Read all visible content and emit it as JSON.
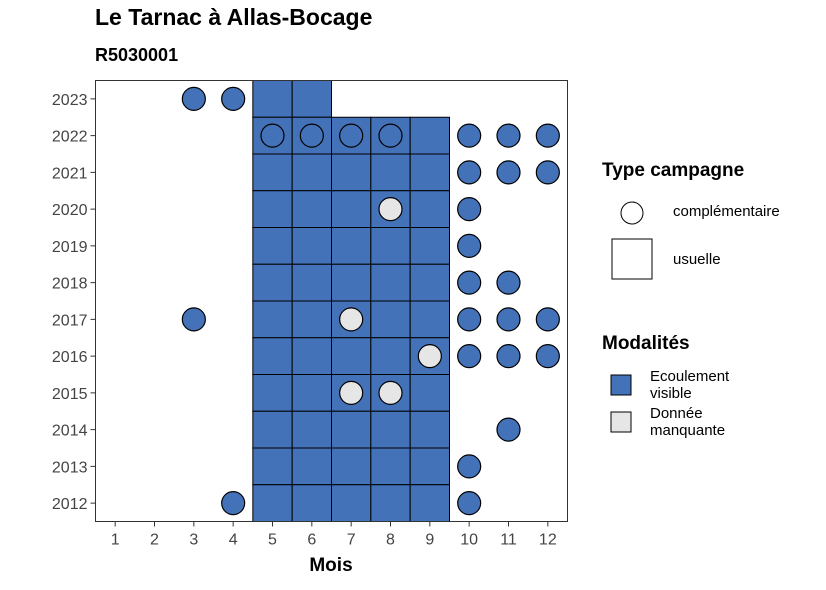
{
  "chart_data": {
    "type": "heatmap",
    "title": "Le Tarnac à Allas-Bocage",
    "subtitle": "R5030001",
    "xlabel": "Mois",
    "ylabel": "",
    "x_ticks": [
      "1",
      "2",
      "3",
      "4",
      "5",
      "6",
      "7",
      "8",
      "9",
      "10",
      "11",
      "12"
    ],
    "y_ticks": [
      "2012",
      "2013",
      "2014",
      "2015",
      "2016",
      "2017",
      "2018",
      "2019",
      "2020",
      "2021",
      "2022",
      "2023"
    ],
    "xlim": [
      0.5,
      12.5
    ],
    "ylim": [
      2011.5,
      2023.5
    ],
    "legend_type_title": "Type campagne",
    "legend_type": [
      "complémentaire",
      "usuelle"
    ],
    "legend_mod_title": "Modalités",
    "legend_mod": [
      {
        "line1": "Ecoulement",
        "line2": "visible",
        "color": "#4472b8"
      },
      {
        "line1": "Donnée",
        "line2": "manquante",
        "color": "#e6e6e6"
      }
    ],
    "colors": {
      "ecoulement": "#4472b8",
      "manquante": "#e6e6e6"
    },
    "points": [
      {
        "year": 2023,
        "month": 3,
        "type": "complémentaire",
        "modalite": "Ecoulement visible"
      },
      {
        "year": 2023,
        "month": 4,
        "type": "complémentaire",
        "modalite": "Ecoulement visible"
      },
      {
        "year": 2023,
        "month": 5,
        "type": "usuelle",
        "modalite": "Ecoulement visible"
      },
      {
        "year": 2023,
        "month": 6,
        "type": "usuelle",
        "modalite": "Ecoulement visible"
      },
      {
        "year": 2022,
        "month": 5,
        "type": "usuelle",
        "modalite": "Ecoulement visible"
      },
      {
        "year": 2022,
        "month": 5,
        "type": "complémentaire",
        "modalite": "Ecoulement visible"
      },
      {
        "year": 2022,
        "month": 6,
        "type": "usuelle",
        "modalite": "Ecoulement visible"
      },
      {
        "year": 2022,
        "month": 6,
        "type": "complémentaire",
        "modalite": "Ecoulement visible"
      },
      {
        "year": 2022,
        "month": 7,
        "type": "usuelle",
        "modalite": "Ecoulement visible"
      },
      {
        "year": 2022,
        "month": 7,
        "type": "complémentaire",
        "modalite": "Ecoulement visible"
      },
      {
        "year": 2022,
        "month": 8,
        "type": "usuelle",
        "modalite": "Ecoulement visible"
      },
      {
        "year": 2022,
        "month": 8,
        "type": "complémentaire",
        "modalite": "Ecoulement visible"
      },
      {
        "year": 2022,
        "month": 9,
        "type": "usuelle",
        "modalite": "Ecoulement visible"
      },
      {
        "year": 2022,
        "month": 10,
        "type": "complémentaire",
        "modalite": "Ecoulement visible"
      },
      {
        "year": 2022,
        "month": 11,
        "type": "complémentaire",
        "modalite": "Ecoulement visible"
      },
      {
        "year": 2022,
        "month": 12,
        "type": "complémentaire",
        "modalite": "Ecoulement visible"
      },
      {
        "year": 2021,
        "month": 5,
        "type": "usuelle",
        "modalite": "Ecoulement visible"
      },
      {
        "year": 2021,
        "month": 6,
        "type": "usuelle",
        "modalite": "Ecoulement visible"
      },
      {
        "year": 2021,
        "month": 7,
        "type": "usuelle",
        "modalite": "Ecoulement visible"
      },
      {
        "year": 2021,
        "month": 8,
        "type": "usuelle",
        "modalite": "Ecoulement visible"
      },
      {
        "year": 2021,
        "month": 9,
        "type": "usuelle",
        "modalite": "Ecoulement visible"
      },
      {
        "year": 2021,
        "month": 10,
        "type": "complémentaire",
        "modalite": "Ecoulement visible"
      },
      {
        "year": 2021,
        "month": 11,
        "type": "complémentaire",
        "modalite": "Ecoulement visible"
      },
      {
        "year": 2021,
        "month": 12,
        "type": "complémentaire",
        "modalite": "Ecoulement visible"
      },
      {
        "year": 2020,
        "month": 5,
        "type": "usuelle",
        "modalite": "Ecoulement visible"
      },
      {
        "year": 2020,
        "month": 6,
        "type": "usuelle",
        "modalite": "Ecoulement visible"
      },
      {
        "year": 2020,
        "month": 7,
        "type": "usuelle",
        "modalite": "Ecoulement visible"
      },
      {
        "year": 2020,
        "month": 8,
        "type": "usuelle",
        "modalite": "Ecoulement visible"
      },
      {
        "year": 2020,
        "month": 8,
        "type": "complémentaire",
        "modalite": "Donnée manquante"
      },
      {
        "year": 2020,
        "month": 9,
        "type": "usuelle",
        "modalite": "Ecoulement visible"
      },
      {
        "year": 2020,
        "month": 10,
        "type": "complémentaire",
        "modalite": "Ecoulement visible"
      },
      {
        "year": 2019,
        "month": 5,
        "type": "usuelle",
        "modalite": "Ecoulement visible"
      },
      {
        "year": 2019,
        "month": 6,
        "type": "usuelle",
        "modalite": "Ecoulement visible"
      },
      {
        "year": 2019,
        "month": 7,
        "type": "usuelle",
        "modalite": "Ecoulement visible"
      },
      {
        "year": 2019,
        "month": 8,
        "type": "usuelle",
        "modalite": "Ecoulement visible"
      },
      {
        "year": 2019,
        "month": 9,
        "type": "usuelle",
        "modalite": "Ecoulement visible"
      },
      {
        "year": 2019,
        "month": 10,
        "type": "complémentaire",
        "modalite": "Ecoulement visible"
      },
      {
        "year": 2018,
        "month": 5,
        "type": "usuelle",
        "modalite": "Ecoulement visible"
      },
      {
        "year": 2018,
        "month": 6,
        "type": "usuelle",
        "modalite": "Ecoulement visible"
      },
      {
        "year": 2018,
        "month": 7,
        "type": "usuelle",
        "modalite": "Ecoulement visible"
      },
      {
        "year": 2018,
        "month": 8,
        "type": "usuelle",
        "modalite": "Ecoulement visible"
      },
      {
        "year": 2018,
        "month": 9,
        "type": "usuelle",
        "modalite": "Ecoulement visible"
      },
      {
        "year": 2018,
        "month": 10,
        "type": "complémentaire",
        "modalite": "Ecoulement visible"
      },
      {
        "year": 2018,
        "month": 11,
        "type": "complémentaire",
        "modalite": "Ecoulement visible"
      },
      {
        "year": 2017,
        "month": 3,
        "type": "complémentaire",
        "modalite": "Ecoulement visible"
      },
      {
        "year": 2017,
        "month": 5,
        "type": "usuelle",
        "modalite": "Ecoulement visible"
      },
      {
        "year": 2017,
        "month": 6,
        "type": "usuelle",
        "modalite": "Ecoulement visible"
      },
      {
        "year": 2017,
        "month": 7,
        "type": "usuelle",
        "modalite": "Ecoulement visible"
      },
      {
        "year": 2017,
        "month": 7,
        "type": "complémentaire",
        "modalite": "Donnée manquante"
      },
      {
        "year": 2017,
        "month": 8,
        "type": "usuelle",
        "modalite": "Ecoulement visible"
      },
      {
        "year": 2017,
        "month": 9,
        "type": "usuelle",
        "modalite": "Ecoulement visible"
      },
      {
        "year": 2017,
        "month": 10,
        "type": "complémentaire",
        "modalite": "Ecoulement visible"
      },
      {
        "year": 2017,
        "month": 11,
        "type": "complémentaire",
        "modalite": "Ecoulement visible"
      },
      {
        "year": 2017,
        "month": 12,
        "type": "complémentaire",
        "modalite": "Ecoulement visible"
      },
      {
        "year": 2016,
        "month": 5,
        "type": "usuelle",
        "modalite": "Ecoulement visible"
      },
      {
        "year": 2016,
        "month": 6,
        "type": "usuelle",
        "modalite": "Ecoulement visible"
      },
      {
        "year": 2016,
        "month": 7,
        "type": "usuelle",
        "modalite": "Ecoulement visible"
      },
      {
        "year": 2016,
        "month": 8,
        "type": "usuelle",
        "modalite": "Ecoulement visible"
      },
      {
        "year": 2016,
        "month": 9,
        "type": "usuelle",
        "modalite": "Ecoulement visible"
      },
      {
        "year": 2016,
        "month": 9,
        "type": "complémentaire",
        "modalite": "Donnée manquante"
      },
      {
        "year": 2016,
        "month": 10,
        "type": "complémentaire",
        "modalite": "Ecoulement visible"
      },
      {
        "year": 2016,
        "month": 11,
        "type": "complémentaire",
        "modalite": "Ecoulement visible"
      },
      {
        "year": 2016,
        "month": 12,
        "type": "complémentaire",
        "modalite": "Ecoulement visible"
      },
      {
        "year": 2015,
        "month": 5,
        "type": "usuelle",
        "modalite": "Ecoulement visible"
      },
      {
        "year": 2015,
        "month": 6,
        "type": "usuelle",
        "modalite": "Ecoulement visible"
      },
      {
        "year": 2015,
        "month": 7,
        "type": "usuelle",
        "modalite": "Ecoulement visible"
      },
      {
        "year": 2015,
        "month": 7,
        "type": "complémentaire",
        "modalite": "Donnée manquante"
      },
      {
        "year": 2015,
        "month": 8,
        "type": "usuelle",
        "modalite": "Ecoulement visible"
      },
      {
        "year": 2015,
        "month": 8,
        "type": "complémentaire",
        "modalite": "Donnée manquante"
      },
      {
        "year": 2015,
        "month": 9,
        "type": "usuelle",
        "modalite": "Ecoulement visible"
      },
      {
        "year": 2014,
        "month": 5,
        "type": "usuelle",
        "modalite": "Ecoulement visible"
      },
      {
        "year": 2014,
        "month": 6,
        "type": "usuelle",
        "modalite": "Ecoulement visible"
      },
      {
        "year": 2014,
        "month": 7,
        "type": "usuelle",
        "modalite": "Ecoulement visible"
      },
      {
        "year": 2014,
        "month": 8,
        "type": "usuelle",
        "modalite": "Ecoulement visible"
      },
      {
        "year": 2014,
        "month": 9,
        "type": "usuelle",
        "modalite": "Ecoulement visible"
      },
      {
        "year": 2014,
        "month": 11,
        "type": "complémentaire",
        "modalite": "Ecoulement visible"
      },
      {
        "year": 2013,
        "month": 5,
        "type": "usuelle",
        "modalite": "Ecoulement visible"
      },
      {
        "year": 2013,
        "month": 6,
        "type": "usuelle",
        "modalite": "Ecoulement visible"
      },
      {
        "year": 2013,
        "month": 7,
        "type": "usuelle",
        "modalite": "Ecoulement visible"
      },
      {
        "year": 2013,
        "month": 8,
        "type": "usuelle",
        "modalite": "Ecoulement visible"
      },
      {
        "year": 2013,
        "month": 9,
        "type": "usuelle",
        "modalite": "Ecoulement visible"
      },
      {
        "year": 2013,
        "month": 10,
        "type": "complémentaire",
        "modalite": "Ecoulement visible"
      },
      {
        "year": 2012,
        "month": 4,
        "type": "complémentaire",
        "modalite": "Ecoulement visible"
      },
      {
        "year": 2012,
        "month": 5,
        "type": "usuelle",
        "modalite": "Ecoulement visible"
      },
      {
        "year": 2012,
        "month": 6,
        "type": "usuelle",
        "modalite": "Ecoulement visible"
      },
      {
        "year": 2012,
        "month": 7,
        "type": "usuelle",
        "modalite": "Ecoulement visible"
      },
      {
        "year": 2012,
        "month": 8,
        "type": "usuelle",
        "modalite": "Ecoulement visible"
      },
      {
        "year": 2012,
        "month": 9,
        "type": "usuelle",
        "modalite": "Ecoulement visible"
      },
      {
        "year": 2012,
        "month": 10,
        "type": "complémentaire",
        "modalite": "Ecoulement visible"
      }
    ]
  }
}
